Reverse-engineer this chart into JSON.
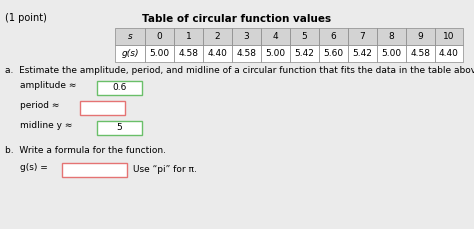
{
  "title": "(1 point)",
  "table_title": "Table of circular function values",
  "s_values": [
    "s",
    "0",
    "1",
    "2",
    "3",
    "4",
    "5",
    "6",
    "7",
    "8",
    "9",
    "10"
  ],
  "gs_values": [
    "g(s)",
    "5.00",
    "4.58",
    "4.40",
    "4.58",
    "5.00",
    "5.42",
    "5.60",
    "5.42",
    "5.00",
    "4.58",
    "4.40"
  ],
  "part_a_text": "a.  Estimate the amplitude, period, and midline of a circular function that fits the data in the table above.",
  "amplitude_label": "amplitude ≈",
  "amplitude_value": "0.6",
  "period_label": "period ≈",
  "period_value": "",
  "midline_label": "midline y ≈",
  "midline_value": "5",
  "part_b_text": "b.  Write a formula for the function.",
  "gs_label": "g(s) =",
  "gs_formula_value": "",
  "pi_hint": "Use “pi” for π.",
  "bg_color": "#ebebeb",
  "box_fill": "#ffffff",
  "box_border_correct": "#6abf69",
  "box_border_wrong": "#e57373",
  "table_line_color": "#888888",
  "table_header_fill": "#d3d3d3",
  "table_body_fill": "#ffffff"
}
